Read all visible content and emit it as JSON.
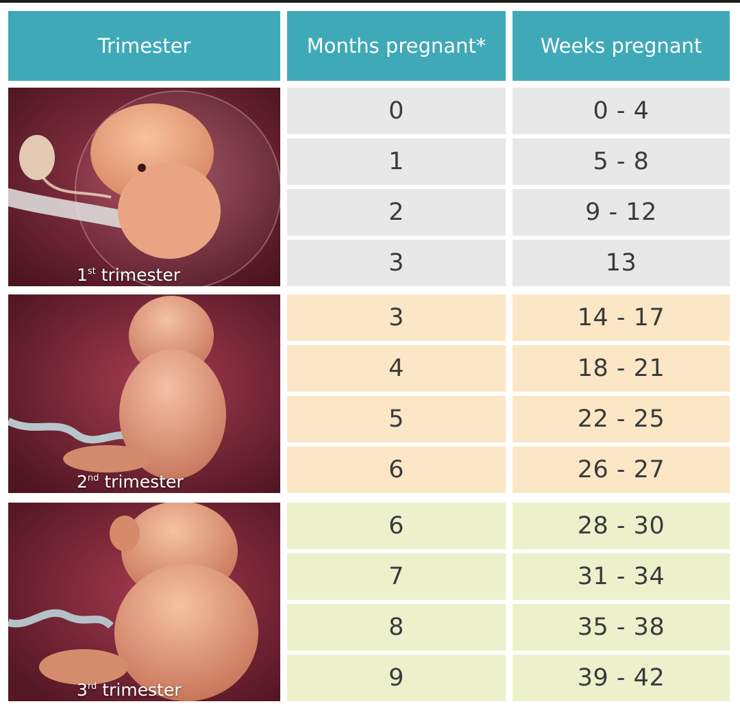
{
  "headers": {
    "trimester": "Trimester",
    "months": "Months pregnant*",
    "weeks": "Weeks pregnant"
  },
  "panels": [
    {
      "num": "1",
      "suffix": "st",
      "word": "trimester"
    },
    {
      "num": "2",
      "suffix": "nd",
      "word": "trimester"
    },
    {
      "num": "3",
      "suffix": "rd",
      "word": "trimester"
    }
  ],
  "rows": [
    {
      "month": "0",
      "weeks": "0 - 4",
      "trimester": 1
    },
    {
      "month": "1",
      "weeks": "5 - 8",
      "trimester": 1
    },
    {
      "month": "2",
      "weeks": "9 - 12",
      "trimester": 1
    },
    {
      "month": "3",
      "weeks": "13",
      "trimester": 1
    },
    {
      "month": "3",
      "weeks": "14 - 17",
      "trimester": 2
    },
    {
      "month": "4",
      "weeks": "18 - 21",
      "trimester": 2
    },
    {
      "month": "5",
      "weeks": "22 - 25",
      "trimester": 2
    },
    {
      "month": "6",
      "weeks": "26 - 27",
      "trimester": 2
    },
    {
      "month": "6",
      "weeks": "28 - 30",
      "trimester": 3
    },
    {
      "month": "7",
      "weeks": "31 - 34",
      "trimester": 3
    },
    {
      "month": "8",
      "weeks": "35 - 38",
      "trimester": 3
    },
    {
      "month": "9",
      "weeks": "39 - 42",
      "trimester": 3
    }
  ],
  "colors": {
    "header": "#3fa9b8",
    "trimester1_row": "#e8e8e8",
    "trimester2_row": "#fbe7c6",
    "trimester3_row": "#ecf1cc"
  }
}
